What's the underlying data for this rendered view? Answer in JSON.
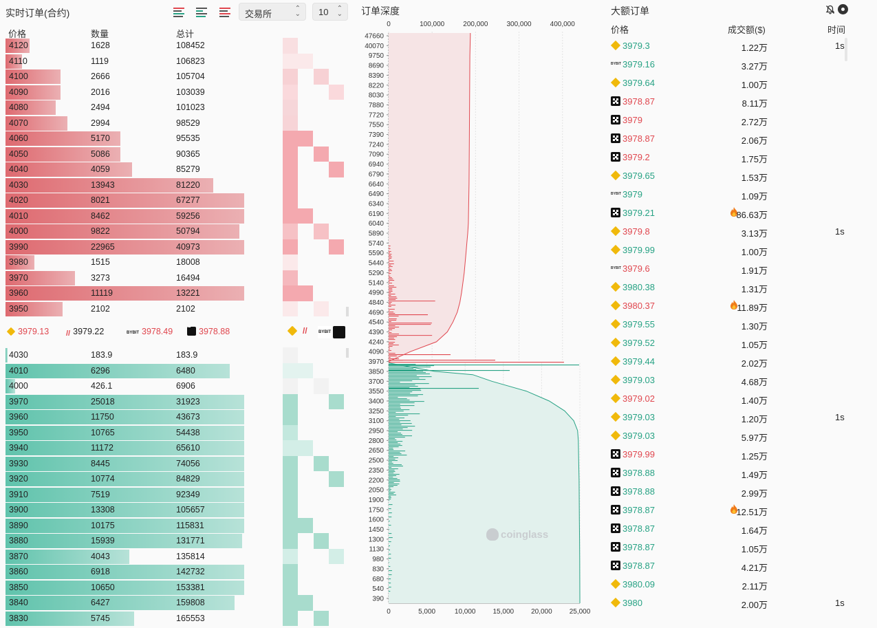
{
  "orderbook": {
    "title": "实时订单(合约)",
    "exchange_select": "交易所",
    "depth_select": "10",
    "columns": {
      "price": "价格",
      "qty": "数量",
      "total": "总计"
    },
    "asks": [
      {
        "price": "4120",
        "qty": "1628",
        "total": "108452",
        "bar": 0.1
      },
      {
        "price": "4110",
        "qty": "1119",
        "total": "106823",
        "bar": 0.07
      },
      {
        "price": "4100",
        "qty": "2666",
        "total": "105704",
        "bar": 0.23
      },
      {
        "price": "4090",
        "qty": "2016",
        "total": "103039",
        "bar": 0.23
      },
      {
        "price": "4080",
        "qty": "2494",
        "total": "101023",
        "bar": 0.21
      },
      {
        "price": "4070",
        "qty": "2994",
        "total": "98529",
        "bar": 0.26
      },
      {
        "price": "4060",
        "qty": "5170",
        "total": "95535",
        "bar": 0.48
      },
      {
        "price": "4050",
        "qty": "5086",
        "total": "90365",
        "bar": 0.48
      },
      {
        "price": "4040",
        "qty": "4059",
        "total": "85279",
        "bar": 0.53
      },
      {
        "price": "4030",
        "qty": "13943",
        "total": "81220",
        "bar": 0.87
      },
      {
        "price": "4020",
        "qty": "8021",
        "total": "67277",
        "bar": 1.0
      },
      {
        "price": "4010",
        "qty": "8462",
        "total": "59256",
        "bar": 1.0
      },
      {
        "price": "4000",
        "qty": "9822",
        "total": "50794",
        "bar": 0.98
      },
      {
        "price": "3990",
        "qty": "22965",
        "total": "40973",
        "bar": 1.0
      },
      {
        "price": "3980",
        "qty": "1515",
        "total": "18008",
        "bar": 0.12
      },
      {
        "price": "3970",
        "qty": "3273",
        "total": "16494",
        "bar": 0.29
      },
      {
        "price": "3960",
        "qty": "11119",
        "total": "13221",
        "bar": 1.0
      },
      {
        "price": "3950",
        "qty": "2102",
        "total": "2102",
        "bar": 0.24
      }
    ],
    "bids": [
      {
        "price": "4030",
        "qty": "183.9",
        "total": "183.9",
        "bar": 0.01
      },
      {
        "price": "4010",
        "qty": "6296",
        "total": "6480",
        "bar": 0.94
      },
      {
        "price": "4000",
        "qty": "426.1",
        "total": "6906",
        "bar": 0.04
      },
      {
        "price": "3970",
        "qty": "25018",
        "total": "31923",
        "bar": 1.0
      },
      {
        "price": "3960",
        "qty": "11750",
        "total": "43673",
        "bar": 1.0
      },
      {
        "price": "3950",
        "qty": "10765",
        "total": "54438",
        "bar": 1.0
      },
      {
        "price": "3940",
        "qty": "11172",
        "total": "65610",
        "bar": 1.0
      },
      {
        "price": "3930",
        "qty": "8445",
        "total": "74056",
        "bar": 1.0
      },
      {
        "price": "3920",
        "qty": "10774",
        "total": "84829",
        "bar": 1.0
      },
      {
        "price": "3910",
        "qty": "7519",
        "total": "92349",
        "bar": 1.0
      },
      {
        "price": "3900",
        "qty": "13308",
        "total": "105657",
        "bar": 1.0
      },
      {
        "price": "3890",
        "qty": "10175",
        "total": "115831",
        "bar": 1.0
      },
      {
        "price": "3880",
        "qty": "15939",
        "total": "131771",
        "bar": 0.99
      },
      {
        "price": "3870",
        "qty": "4043",
        "total": "135814",
        "bar": 0.52
      },
      {
        "price": "3860",
        "qty": "6918",
        "total": "142732",
        "bar": 1.0
      },
      {
        "price": "3850",
        "qty": "10650",
        "total": "153381",
        "bar": 1.0
      },
      {
        "price": "3840",
        "qty": "6427",
        "total": "159808",
        "bar": 0.96
      },
      {
        "price": "3830",
        "qty": "5745",
        "total": "165553",
        "bar": 0.54
      }
    ],
    "exchange_prices": [
      {
        "logo": "binance-icon",
        "price": "3979.13",
        "color": "#e0474f"
      },
      {
        "logo": "ftx-icon",
        "price": "3979.22",
        "color": "#222222"
      },
      {
        "logo": "bybit-icon",
        "price": "3978.49",
        "color": "#e0474f"
      },
      {
        "logo": "okx-icon",
        "price": "3978.88",
        "color": "#e0474f"
      }
    ]
  },
  "depth": {
    "title": "订单深度"
  },
  "chart_data": {
    "type": "area",
    "title": "订单深度",
    "y_ticks": [
      "47660",
      "40070",
      "9750",
      "8690",
      "8390",
      "8220",
      "8030",
      "7880",
      "7720",
      "7550",
      "7390",
      "7240",
      "7090",
      "6940",
      "6790",
      "6640",
      "6490",
      "6340",
      "6190",
      "6040",
      "5890",
      "5740",
      "5590",
      "5440",
      "5290",
      "5140",
      "4990",
      "4840",
      "4690",
      "4540",
      "4390",
      "4240",
      "4090",
      "3970",
      "3850",
      "3700",
      "3550",
      "3400",
      "3250",
      "3100",
      "2950",
      "2800",
      "2650",
      "2500",
      "2350",
      "2200",
      "2050",
      "1900",
      "1750",
      "1600",
      "1450",
      "1300",
      "1130",
      "980",
      "830",
      "680",
      "540",
      "390"
    ],
    "top_x_ticks": [
      "0",
      "100,000",
      "200,000",
      "300,000",
      "400,000"
    ],
    "top_xlim": [
      0,
      440000
    ],
    "bottom_x_ticks": [
      "0",
      "5,000",
      "10,000",
      "15,000",
      "20,000",
      "25,000"
    ],
    "bottom_xlim": [
      0,
      25000
    ],
    "series": [
      {
        "name": "asks",
        "color": "#e0474f",
        "price": [
          3970,
          4090,
          4240,
          4390,
          4540,
          4690,
          4840,
          4990,
          5140,
          5290,
          5440,
          5590,
          5740,
          5890,
          6040,
          6640,
          7550,
          9750,
          47660
        ],
        "cumulative": [
          0,
          50000,
          110000,
          135000,
          148000,
          158000,
          164000,
          168000,
          171000,
          174000,
          176000,
          178000,
          180000,
          182000,
          183500,
          185000,
          186000,
          187000,
          188000
        ]
      },
      {
        "name": "bids",
        "color": "#27a284",
        "price": [
          3970,
          3850,
          3800,
          3700,
          3550,
          3400,
          3250,
          3100,
          2950,
          2800,
          2500,
          2200,
          1900,
          1600,
          1300,
          980,
          680,
          390
        ],
        "cumulative": [
          0,
          6000,
          11000,
          13500,
          18000,
          21000,
          23000,
          24200,
          24700,
          24800,
          24850,
          24900,
          24920,
          24940,
          24960,
          24980,
          24990,
          25000
        ]
      }
    ],
    "watermark": "coinglass"
  },
  "large_orders": {
    "title": "大额订单",
    "columns": {
      "price": "价格",
      "amount": "成交额($)",
      "time": "时间"
    },
    "rows": [
      {
        "ex": "binance-icon",
        "price": "3979.3",
        "amount": "1.22万",
        "time": "1s",
        "side": "green",
        "fire": false
      },
      {
        "ex": "bybit-icon",
        "price": "3979.16",
        "amount": "3.27万",
        "time": "",
        "side": "green",
        "fire": false
      },
      {
        "ex": "binance-icon",
        "price": "3979.64",
        "amount": "1.00万",
        "time": "",
        "side": "green",
        "fire": false
      },
      {
        "ex": "okx-icon",
        "price": "3978.87",
        "amount": "8.11万",
        "time": "",
        "side": "red",
        "fire": false
      },
      {
        "ex": "okx-icon",
        "price": "3979",
        "amount": "2.72万",
        "time": "",
        "side": "red",
        "fire": false
      },
      {
        "ex": "okx-icon",
        "price": "3978.87",
        "amount": "2.06万",
        "time": "",
        "side": "red",
        "fire": false
      },
      {
        "ex": "okx-icon",
        "price": "3979.2",
        "amount": "1.75万",
        "time": "",
        "side": "red",
        "fire": false
      },
      {
        "ex": "binance-icon",
        "price": "3979.65",
        "amount": "1.53万",
        "time": "",
        "side": "green",
        "fire": false
      },
      {
        "ex": "bybit-icon",
        "price": "3979",
        "amount": "1.09万",
        "time": "",
        "side": "green",
        "fire": false
      },
      {
        "ex": "okx-icon",
        "price": "3979.21",
        "amount": "86.63万",
        "time": "",
        "side": "green",
        "fire": true
      },
      {
        "ex": "binance-icon",
        "price": "3979.8",
        "amount": "3.13万",
        "time": "1s",
        "side": "red",
        "fire": false
      },
      {
        "ex": "binance-icon",
        "price": "3979.99",
        "amount": "1.00万",
        "time": "",
        "side": "green",
        "fire": false
      },
      {
        "ex": "bybit-icon",
        "price": "3979.6",
        "amount": "1.91万",
        "time": "",
        "side": "red",
        "fire": false
      },
      {
        "ex": "binance-icon",
        "price": "3980.38",
        "amount": "1.31万",
        "time": "",
        "side": "green",
        "fire": false
      },
      {
        "ex": "binance-icon",
        "price": "3980.37",
        "amount": "11.89万",
        "time": "",
        "side": "red",
        "fire": true
      },
      {
        "ex": "binance-icon",
        "price": "3979.55",
        "amount": "1.30万",
        "time": "",
        "side": "green",
        "fire": false
      },
      {
        "ex": "binance-icon",
        "price": "3979.52",
        "amount": "1.05万",
        "time": "",
        "side": "green",
        "fire": false
      },
      {
        "ex": "binance-icon",
        "price": "3979.44",
        "amount": "2.02万",
        "time": "",
        "side": "green",
        "fire": false
      },
      {
        "ex": "binance-icon",
        "price": "3979.03",
        "amount": "4.68万",
        "time": "",
        "side": "green",
        "fire": false
      },
      {
        "ex": "binance-icon",
        "price": "3979.02",
        "amount": "1.40万",
        "time": "",
        "side": "red",
        "fire": false
      },
      {
        "ex": "binance-icon",
        "price": "3979.03",
        "amount": "1.20万",
        "time": "1s",
        "side": "green",
        "fire": false
      },
      {
        "ex": "binance-icon",
        "price": "3979.03",
        "amount": "5.97万",
        "time": "",
        "side": "green",
        "fire": false
      },
      {
        "ex": "okx-icon",
        "price": "3979.99",
        "amount": "1.25万",
        "time": "",
        "side": "red",
        "fire": false
      },
      {
        "ex": "okx-icon",
        "price": "3978.88",
        "amount": "1.49万",
        "time": "",
        "side": "green",
        "fire": false
      },
      {
        "ex": "okx-icon",
        "price": "3978.88",
        "amount": "2.99万",
        "time": "",
        "side": "green",
        "fire": false
      },
      {
        "ex": "okx-icon",
        "price": "3978.87",
        "amount": "12.51万",
        "time": "",
        "side": "green",
        "fire": true
      },
      {
        "ex": "okx-icon",
        "price": "3978.87",
        "amount": "1.64万",
        "time": "",
        "side": "green",
        "fire": false
      },
      {
        "ex": "okx-icon",
        "price": "3978.87",
        "amount": "1.05万",
        "time": "",
        "side": "green",
        "fire": false
      },
      {
        "ex": "okx-icon",
        "price": "3978.87",
        "amount": "4.21万",
        "time": "",
        "side": "green",
        "fire": false
      },
      {
        "ex": "binance-icon",
        "price": "3980.09",
        "amount": "2.11万",
        "time": "",
        "side": "green",
        "fire": false
      },
      {
        "ex": "binance-icon",
        "price": "3980",
        "amount": "2.00万",
        "time": "1s",
        "side": "green",
        "fire": false
      }
    ]
  },
  "colors": {
    "ask": "#e0474f",
    "bid": "#27a284",
    "bg": "#fafafa"
  }
}
